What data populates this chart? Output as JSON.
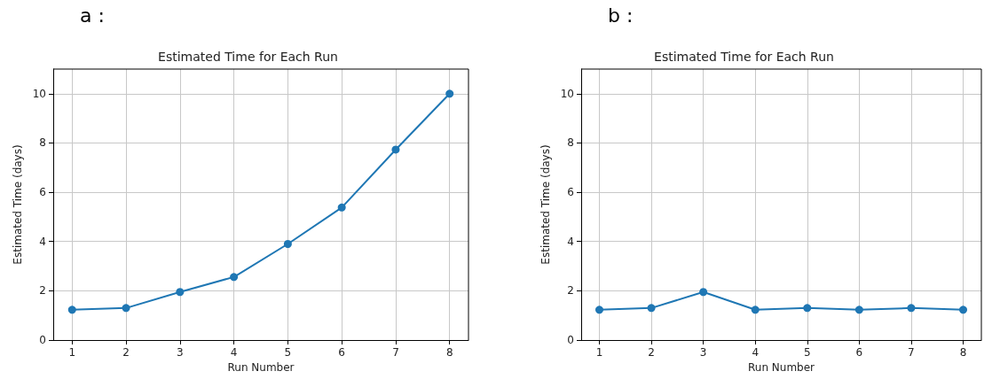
{
  "chart_data": [
    {
      "type": "line",
      "title": "Estimated Time for Each Run",
      "xlabel": "Run Number",
      "ylabel": "Estimated Time (days)",
      "annotations": [
        "a :"
      ],
      "x": [
        1,
        2,
        3,
        4,
        5,
        6,
        7,
        8
      ],
      "series": [
        {
          "color": "#1f77b4",
          "values": [
            1.23,
            1.3,
            1.95,
            2.56,
            3.9,
            5.38,
            7.73,
            10
          ]
        }
      ],
      "xlim": [
        0.65,
        8.35
      ],
      "xticks": [
        1,
        2,
        3,
        4,
        5,
        6,
        7,
        8
      ],
      "ylim": [
        0,
        11
      ],
      "yticks": [
        0,
        2,
        4,
        6,
        8,
        10
      ],
      "grid": true,
      "marker": "circle",
      "line_style": "solid"
    },
    {
      "type": "line",
      "title": "Estimated Time for Each Run",
      "xlabel": "Run Number",
      "ylabel": "Estimated Time (days)",
      "annotations": [
        "b :"
      ],
      "x": [
        1,
        2,
        3,
        4,
        5,
        6,
        7,
        8
      ],
      "series": [
        {
          "color": "#1f77b4",
          "values": [
            1.23,
            1.3,
            1.95,
            1.23,
            1.3,
            1.23,
            1.3,
            1.23
          ]
        }
      ],
      "xlim": [
        0.65,
        8.35
      ],
      "xticks": [
        1,
        2,
        3,
        4,
        5,
        6,
        7,
        8
      ],
      "ylim": [
        0,
        11
      ],
      "yticks": [
        0,
        2,
        4,
        6,
        8,
        10
      ],
      "grid": true,
      "marker": "circle",
      "line_style": "solid"
    }
  ]
}
